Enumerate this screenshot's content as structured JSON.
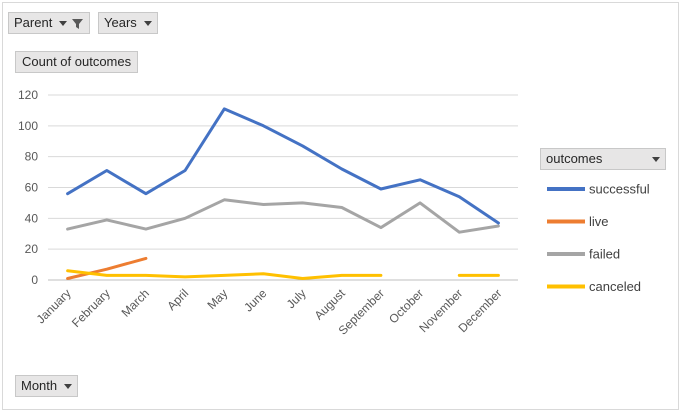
{
  "filters": {
    "parent_label": "Parent",
    "years_label": "Years",
    "value_label": "Count of outcomes",
    "month_label": "Month"
  },
  "icons": {
    "filter": "funnel-icon",
    "dropdown": "chevron-down-icon"
  },
  "chart_data": {
    "type": "line",
    "title": "",
    "xlabel": "",
    "ylabel": "",
    "ylim": [
      0,
      120
    ],
    "yticks": [
      0,
      20,
      40,
      60,
      80,
      100,
      120
    ],
    "grid": true,
    "legend_title": "outcomes",
    "legend_position": "right",
    "categories": [
      "January",
      "February",
      "March",
      "April",
      "May",
      "June",
      "July",
      "August",
      "September",
      "October",
      "November",
      "December"
    ],
    "series": [
      {
        "name": "successful",
        "color": "#4472c4",
        "values": [
          56,
          71,
          56,
          71,
          111,
          100,
          87,
          72,
          59,
          65,
          54,
          37
        ]
      },
      {
        "name": "live",
        "color": "#ed7d31",
        "values": [
          1,
          7,
          14,
          null,
          null,
          null,
          null,
          null,
          null,
          null,
          null,
          null
        ]
      },
      {
        "name": "failed",
        "color": "#a5a5a5",
        "values": [
          33,
          39,
          33,
          40,
          52,
          49,
          50,
          47,
          34,
          50,
          31,
          35
        ]
      },
      {
        "name": "canceled",
        "color": "#ffc000",
        "values": [
          6,
          3,
          3,
          2,
          3,
          4,
          1,
          3,
          3,
          null,
          3,
          3
        ]
      }
    ]
  }
}
